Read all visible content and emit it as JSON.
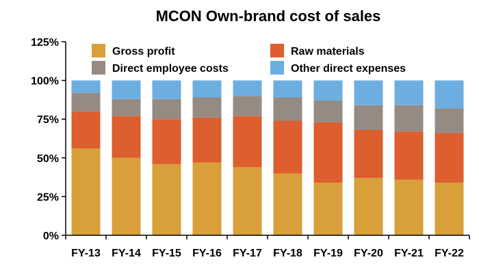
{
  "chart_data": {
    "type": "bar",
    "stacked": true,
    "title": "MCON Own-brand cost of sales",
    "xlabel": "",
    "ylabel": "",
    "categories": [
      "FY-13",
      "FY-14",
      "FY-15",
      "FY-16",
      "FY-17",
      "FY-18",
      "FY-19",
      "FY-20",
      "FY-21",
      "FY-22"
    ],
    "series": [
      {
        "name": "Gross profit",
        "color": "#D89F3A",
        "values": [
          56,
          50,
          46,
          47,
          44,
          40,
          34,
          37,
          36,
          34
        ]
      },
      {
        "name": "Raw materials",
        "color": "#DD5E2E",
        "values": [
          24,
          27,
          29,
          29,
          33,
          34,
          39,
          31,
          31,
          32
        ]
      },
      {
        "name": "Direct employee costs",
        "color": "#958B82",
        "values": [
          12,
          11,
          13,
          13,
          13,
          15,
          14,
          16,
          17,
          16
        ]
      },
      {
        "name": "Other direct expenses",
        "color": "#6DAEE1",
        "values": [
          8,
          12,
          12,
          11,
          10,
          11,
          13,
          16,
          16,
          18
        ]
      }
    ],
    "ylim": [
      0,
      125
    ],
    "yticks": [
      0,
      25,
      50,
      75,
      100,
      125
    ],
    "ytick_labels": [
      "0%",
      "25%",
      "50%",
      "75%",
      "100%",
      "125%"
    ],
    "grid": false,
    "legend": "top, two columns"
  }
}
